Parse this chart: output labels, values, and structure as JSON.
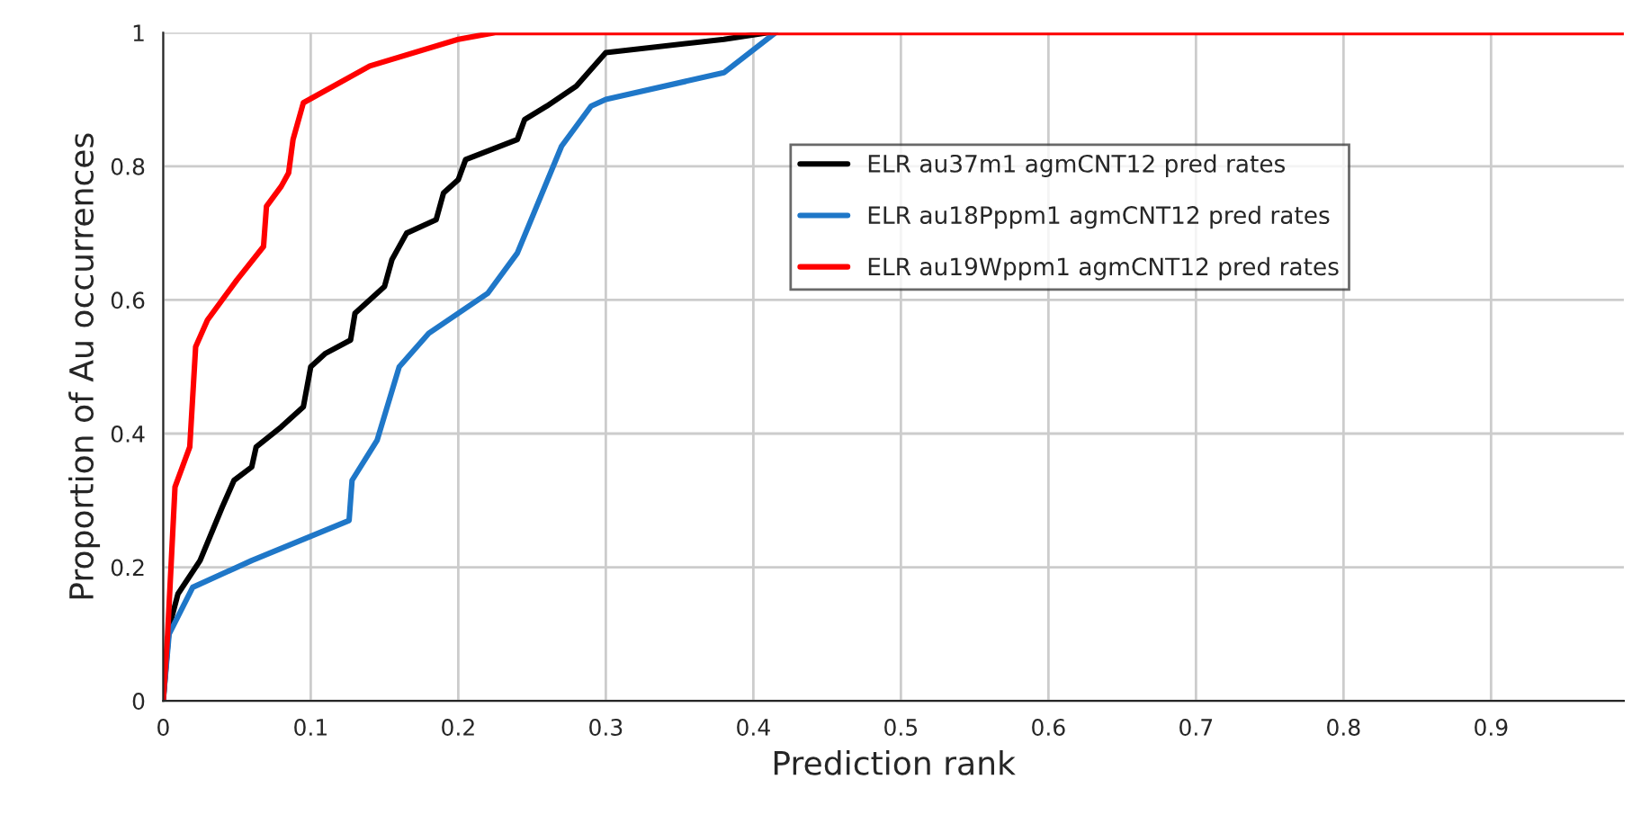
{
  "chart_data": {
    "type": "line",
    "xlabel": "Prediction rank",
    "ylabel": "Proportion of Au occurrences",
    "xlim": [
      0,
      0.99
    ],
    "xticks": [
      0,
      0.1,
      0.2,
      0.3,
      0.4,
      0.5,
      0.6,
      0.7,
      0.8,
      0.9
    ],
    "ylim": [
      0,
      1
    ],
    "yticks": [
      0,
      0.2,
      0.4,
      0.6,
      0.8,
      1
    ],
    "grid": true,
    "legend": "top right",
    "marker": "none",
    "line_style": "solid",
    "series": [
      {
        "name": "ELR au37m1 agmCNT12 pred rates",
        "color": "#000000",
        "x": [
          0,
          0.004,
          0.01,
          0.025,
          0.04,
          0.048,
          0.06,
          0.063,
          0.08,
          0.095,
          0.1,
          0.11,
          0.127,
          0.13,
          0.15,
          0.155,
          0.165,
          0.185,
          0.19,
          0.2,
          0.205,
          0.24,
          0.245,
          0.26,
          0.28,
          0.3,
          0.38,
          0.41
        ],
        "values": [
          0,
          0.11,
          0.16,
          0.21,
          0.29,
          0.33,
          0.35,
          0.38,
          0.41,
          0.44,
          0.5,
          0.52,
          0.54,
          0.58,
          0.62,
          0.66,
          0.7,
          0.72,
          0.76,
          0.78,
          0.81,
          0.84,
          0.87,
          0.89,
          0.92,
          0.97,
          0.99,
          1
        ]
      },
      {
        "name": "ELR au18Pppm1 agmCNT12 pred rates",
        "color": "#1f77c8",
        "x": [
          0,
          0.004,
          0.02,
          0.06,
          0.126,
          0.128,
          0.145,
          0.16,
          0.18,
          0.2,
          0.22,
          0.24,
          0.27,
          0.29,
          0.3,
          0.38,
          0.415
        ],
        "values": [
          0,
          0.1,
          0.17,
          0.21,
          0.27,
          0.33,
          0.39,
          0.5,
          0.55,
          0.58,
          0.61,
          0.67,
          0.83,
          0.89,
          0.9,
          0.94,
          1
        ]
      },
      {
        "name": "ELR au19Wppm1 agmCNT12 pred rates",
        "color": "#ff0000",
        "x": [
          0,
          0.003,
          0.008,
          0.018,
          0.022,
          0.03,
          0.05,
          0.068,
          0.07,
          0.08,
          0.085,
          0.088,
          0.095,
          0.14,
          0.2,
          0.225,
          0.99
        ],
        "values": [
          0,
          0.1,
          0.32,
          0.38,
          0.53,
          0.57,
          0.63,
          0.68,
          0.74,
          0.77,
          0.79,
          0.84,
          0.895,
          0.95,
          0.99,
          1,
          1
        ]
      }
    ]
  }
}
